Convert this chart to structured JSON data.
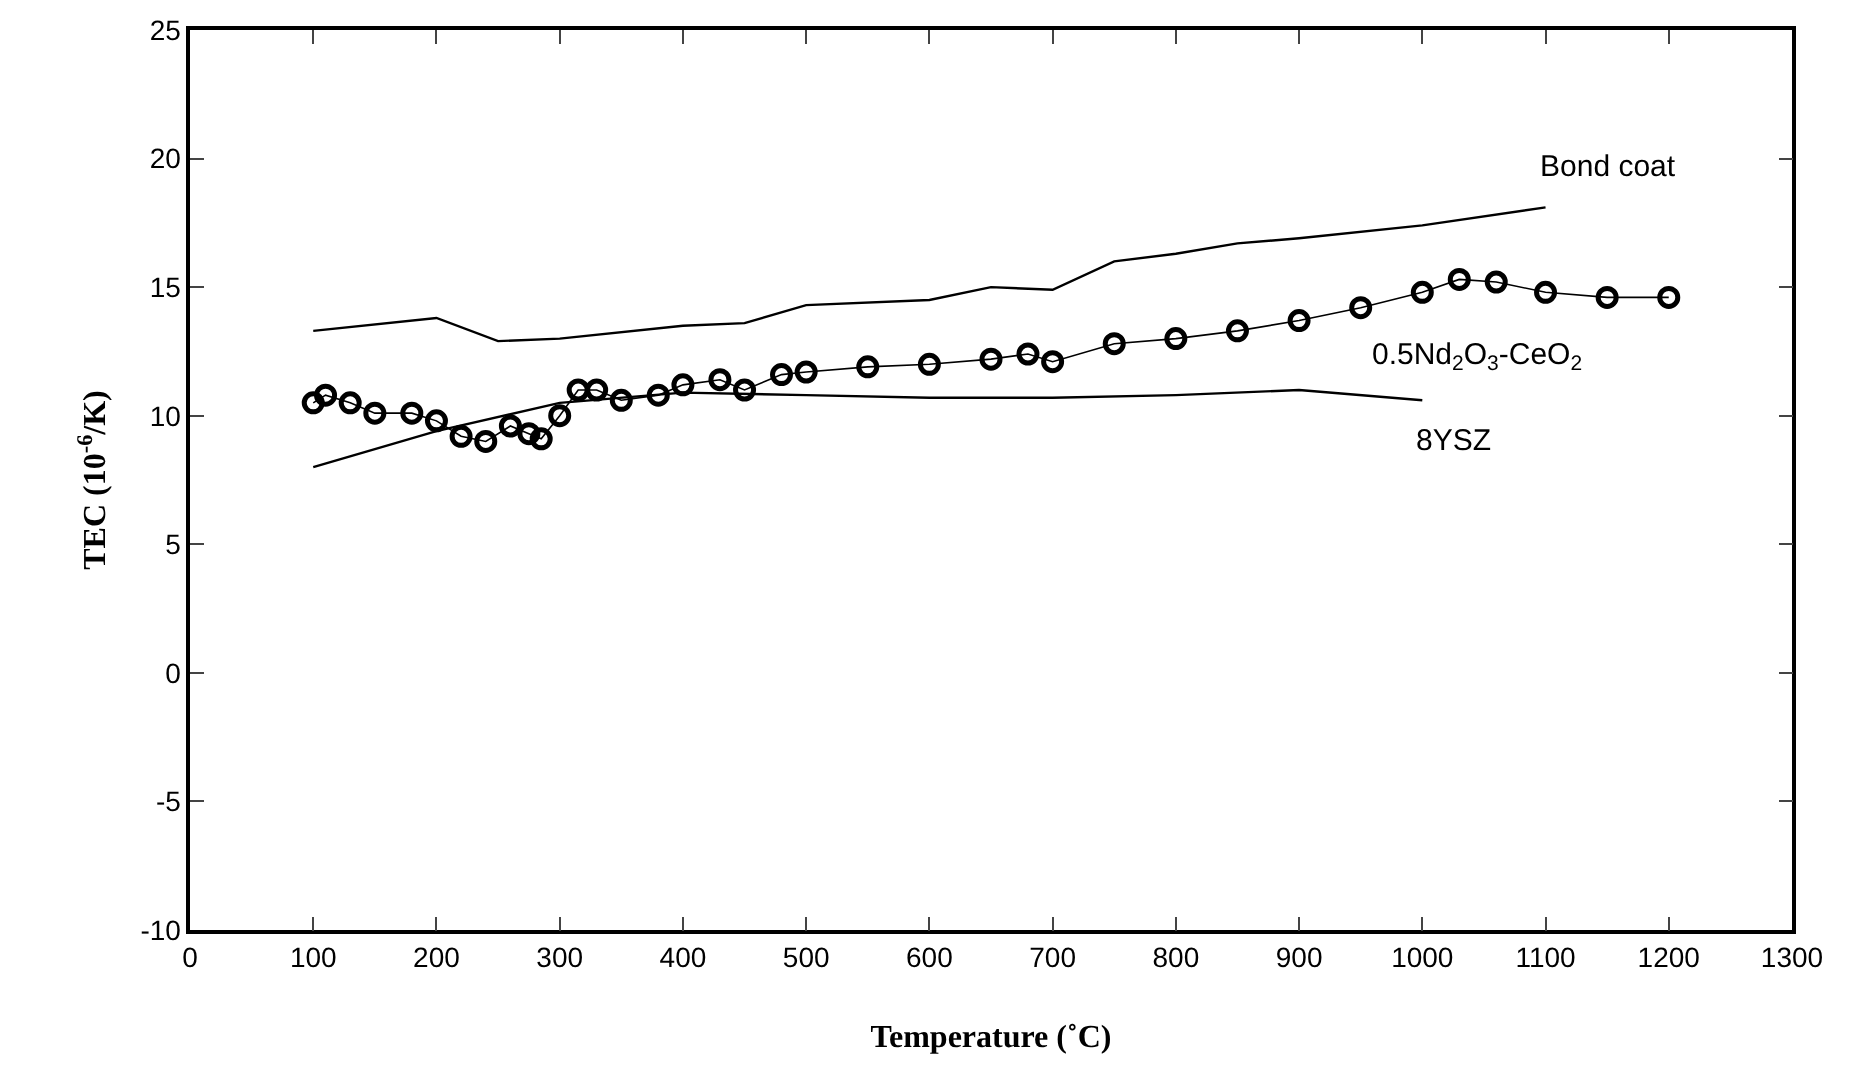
{
  "chart_data": {
    "type": "line",
    "xlabel": "Temperature (˚C)",
    "ylabel": "TEC (10$^{-6}$/K)",
    "xlim": [
      0,
      1300
    ],
    "ylim": [
      -10,
      25
    ],
    "xticks": [
      0,
      100,
      200,
      300,
      400,
      500,
      600,
      700,
      800,
      900,
      1000,
      1100,
      1200,
      1300
    ],
    "yticks": [
      -10,
      -5,
      0,
      5,
      10,
      15,
      20,
      25
    ],
    "grid": false,
    "legend": false,
    "series": [
      {
        "name": "Bond coat",
        "color": "#000000",
        "marker": "none",
        "x": [
          100,
          200,
          250,
          300,
          400,
          450,
          500,
          600,
          650,
          700,
          750,
          800,
          850,
          900,
          1000,
          1100
        ],
        "values": [
          13.3,
          13.8,
          12.9,
          13.0,
          13.5,
          13.6,
          14.3,
          14.5,
          15.0,
          14.9,
          16.0,
          16.3,
          16.7,
          16.9,
          17.4,
          18.1
        ]
      },
      {
        "name": "0.5Nd$_{2}$O$_{3}$-CeO$_{2}$",
        "color": "#000000",
        "marker": "circle",
        "x": [
          100,
          110,
          130,
          150,
          180,
          200,
          220,
          240,
          260,
          275,
          285,
          300,
          315,
          330,
          350,
          380,
          400,
          430,
          450,
          480,
          500,
          550,
          600,
          650,
          680,
          700,
          750,
          800,
          850,
          900,
          950,
          1000,
          1030,
          1060,
          1100,
          1150,
          1200
        ],
        "values": [
          10.5,
          10.8,
          10.5,
          10.1,
          10.1,
          9.8,
          9.2,
          9.0,
          9.6,
          9.3,
          9.1,
          10.0,
          11.0,
          11.0,
          10.6,
          10.8,
          11.2,
          11.4,
          11.0,
          11.6,
          11.7,
          11.9,
          12.0,
          12.2,
          12.4,
          12.1,
          12.8,
          13.0,
          13.3,
          13.7,
          14.2,
          14.8,
          15.3,
          15.2,
          14.8,
          14.6,
          14.6
        ]
      },
      {
        "name": "8YSZ",
        "color": "#000000",
        "marker": "none",
        "x": [
          100,
          200,
          300,
          400,
          500,
          600,
          700,
          800,
          900,
          1000
        ],
        "values": [
          8.0,
          9.4,
          10.5,
          10.9,
          10.8,
          10.7,
          10.7,
          10.8,
          11.0,
          10.6
        ]
      }
    ]
  }
}
